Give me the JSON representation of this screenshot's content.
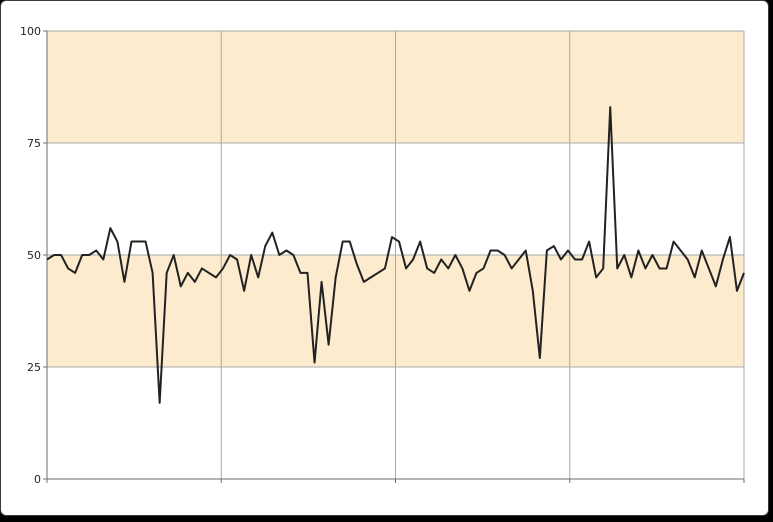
{
  "chart_data": {
    "type": "line",
    "title": "",
    "xlabel": "",
    "ylabel": "",
    "ylim": [
      0,
      100
    ],
    "y_ticks": [
      "0",
      "25",
      "50",
      "75",
      "100"
    ],
    "grid": true,
    "x_major_grid_count": 4,
    "band_color": "#fcebcc",
    "line_color": "#222222",
    "grid_color": "#a8a8a8",
    "series": [
      {
        "values": [
          49,
          50,
          50,
          47,
          46,
          50,
          50,
          51,
          49,
          56,
          53,
          44,
          53,
          53,
          53,
          46,
          17,
          46,
          50,
          43,
          46,
          44,
          47,
          46,
          45,
          47,
          50,
          49,
          42,
          50,
          45,
          52,
          55,
          50,
          51,
          50,
          46,
          46,
          26,
          44,
          30,
          45,
          53,
          53,
          48,
          44,
          45,
          46,
          47,
          54,
          53,
          47,
          49,
          53,
          47,
          46,
          49,
          47,
          50,
          47,
          42,
          46,
          47,
          51,
          51,
          50,
          47,
          49,
          51,
          42,
          27,
          51,
          52,
          49,
          51,
          49,
          49,
          53,
          45,
          47,
          83,
          47,
          50,
          45,
          51,
          47,
          50,
          47,
          47,
          53,
          51,
          49,
          45,
          51,
          47,
          43,
          49,
          54,
          42,
          46
        ]
      }
    ]
  }
}
